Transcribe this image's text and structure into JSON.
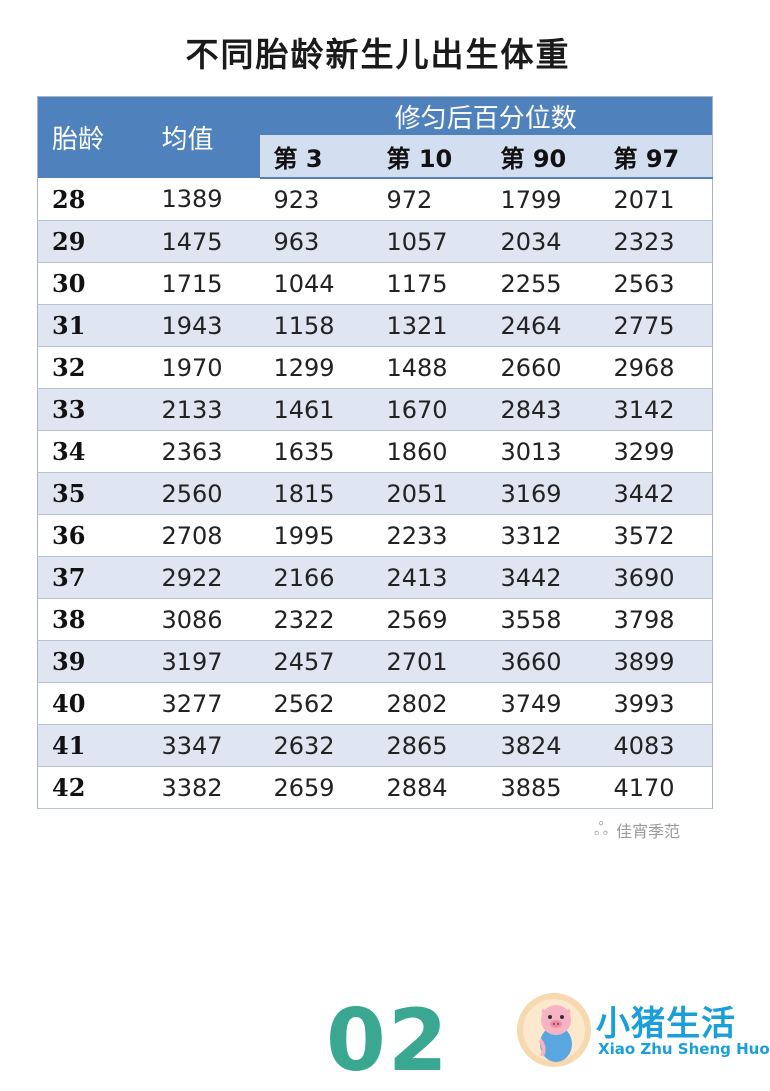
{
  "title": "不同胎龄新生儿出生体重",
  "table": {
    "header_age": "胎龄",
    "header_mean": "均值",
    "header_group": "修匀后百分位数",
    "sub_headers": [
      "第 3",
      "第 10",
      "第 90",
      "第 97"
    ],
    "rows": [
      [
        "28",
        "1389",
        "923",
        "972",
        "1799",
        "2071"
      ],
      [
        "29",
        "1475",
        "963",
        "1057",
        "2034",
        "2323"
      ],
      [
        "30",
        "1715",
        "1044",
        "1175",
        "2255",
        "2563"
      ],
      [
        "31",
        "1943",
        "1158",
        "1321",
        "2464",
        "2775"
      ],
      [
        "32",
        "1970",
        "1299",
        "1488",
        "2660",
        "2968"
      ],
      [
        "33",
        "2133",
        "1461",
        "1670",
        "2843",
        "3142"
      ],
      [
        "34",
        "2363",
        "1635",
        "1860",
        "3013",
        "3299"
      ],
      [
        "35",
        "2560",
        "1815",
        "2051",
        "3169",
        "3442"
      ],
      [
        "36",
        "2708",
        "1995",
        "2233",
        "3312",
        "3572"
      ],
      [
        "37",
        "2922",
        "2166",
        "2413",
        "3442",
        "3690"
      ],
      [
        "38",
        "3086",
        "2322",
        "2569",
        "3558",
        "3798"
      ],
      [
        "39",
        "3197",
        "2457",
        "2701",
        "3660",
        "3899"
      ],
      [
        "40",
        "3277",
        "2562",
        "2802",
        "3749",
        "3993"
      ],
      [
        "41",
        "3347",
        "2632",
        "2865",
        "3824",
        "4083"
      ],
      [
        "42",
        "3382",
        "2659",
        "2884",
        "3885",
        "4170"
      ]
    ]
  },
  "watermark": "佳宵季范",
  "page_number": "02",
  "brand": {
    "name": "小猪生活",
    "pinyin": "Xiao Zhu Sheng Huo"
  },
  "colors": {
    "header_blue": "#4f81bd",
    "sub_header": "#d3dff0",
    "row_stripe": "#dfe6f2",
    "page_number": "#3aa891",
    "brand": "#1a9fd8"
  }
}
